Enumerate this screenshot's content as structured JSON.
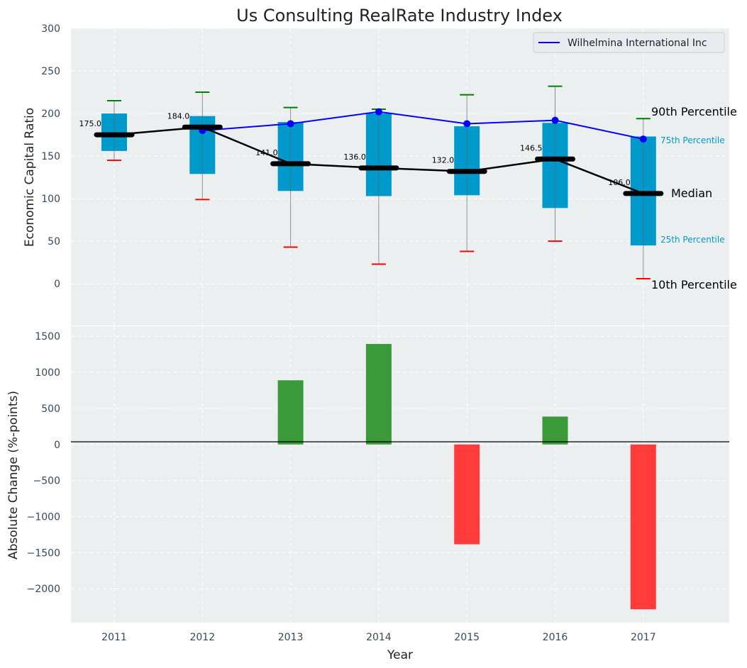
{
  "chart_data": [
    {
      "type": "box",
      "title": "Us Consulting RealRate Industry Index",
      "xlabel": "",
      "ylabel": "Economic Capital Ratio",
      "ylim": [
        -49,
        300
      ],
      "yticks": [
        0,
        50,
        100,
        150,
        200,
        250,
        300
      ],
      "categories": [
        "2011",
        "2012",
        "2013",
        "2014",
        "2015",
        "2016",
        "2017"
      ],
      "grid": true,
      "legend": {
        "placement": "top-right",
        "entries": [
          "Wilhelmina International Inc"
        ]
      },
      "p90": [
        215,
        225,
        207,
        205,
        222,
        232,
        194
      ],
      "p75": [
        200,
        197,
        190,
        200,
        185,
        189,
        173
      ],
      "median": [
        175.0,
        184.0,
        141.0,
        136.0,
        132.0,
        146.5,
        106.0
      ],
      "median_labels": [
        "175.0",
        "184.0",
        "141.0",
        "136.0",
        "132.0",
        "146.5",
        "106.0"
      ],
      "p25": [
        156,
        129,
        109,
        103,
        104,
        89,
        45
      ],
      "p10": [
        145,
        99,
        43,
        23,
        38,
        50,
        6
      ],
      "series": [
        {
          "name": "Wilhelmina International Inc",
          "values": [
            null,
            180,
            188,
            202,
            188,
            192,
            170
          ],
          "color": "#0000ff"
        }
      ],
      "annotations": [
        "90th Percentile",
        "75th Percentile",
        "Median",
        "25th Percentile",
        "10th Percentile"
      ],
      "colors": {
        "box": "#0099cc",
        "p90": "#008000",
        "p10": "#ff0000",
        "median": "#000000"
      }
    },
    {
      "type": "bar",
      "title": "",
      "xlabel": "Year",
      "ylabel": "Absolute Change (%-points)",
      "ylim": [
        -2470,
        1640
      ],
      "yticks": [
        -2000,
        -1500,
        -1000,
        -500,
        0,
        500,
        1000,
        1500
      ],
      "categories": [
        "2011",
        "2012",
        "2013",
        "2014",
        "2015",
        "2016",
        "2017"
      ],
      "values": [
        0,
        0,
        890,
        1394,
        -1384,
        387,
        -2285
      ],
      "grid": true,
      "colors": {
        "positive": "#3a9a3a",
        "negative": "#ff3b3b"
      }
    }
  ]
}
